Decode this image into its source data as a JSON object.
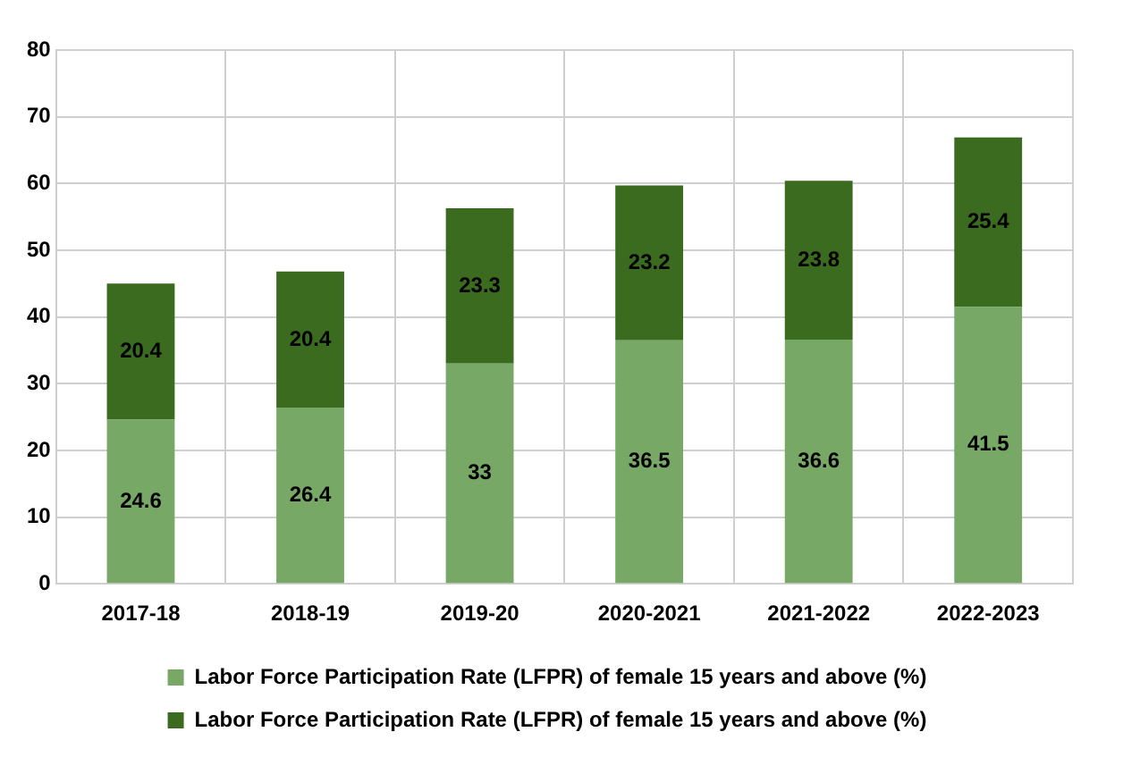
{
  "chart_data": {
    "type": "bar",
    "stacked": true,
    "categories": [
      "2017-18",
      "2018-19",
      "2019-20",
      "2020-2021",
      "2021-2022",
      "2022-2023"
    ],
    "series": [
      {
        "name": "Labor Force Participation Rate (LFPR) of female 15 years and above (%)",
        "color": "#77a865",
        "values": [
          24.6,
          26.4,
          33,
          36.5,
          36.6,
          41.5
        ]
      },
      {
        "name": "Labor Force Participation Rate (LFPR) of female 15 years and above (%)",
        "color": "#3a6b1f",
        "values": [
          20.4,
          20.4,
          23.3,
          23.2,
          23.8,
          25.4
        ]
      }
    ],
    "ylim": [
      0,
      80
    ],
    "yticks": [
      0,
      10,
      20,
      30,
      40,
      50,
      60,
      70,
      80
    ],
    "grid": true,
    "legend": "bottom",
    "data_labels": true
  }
}
